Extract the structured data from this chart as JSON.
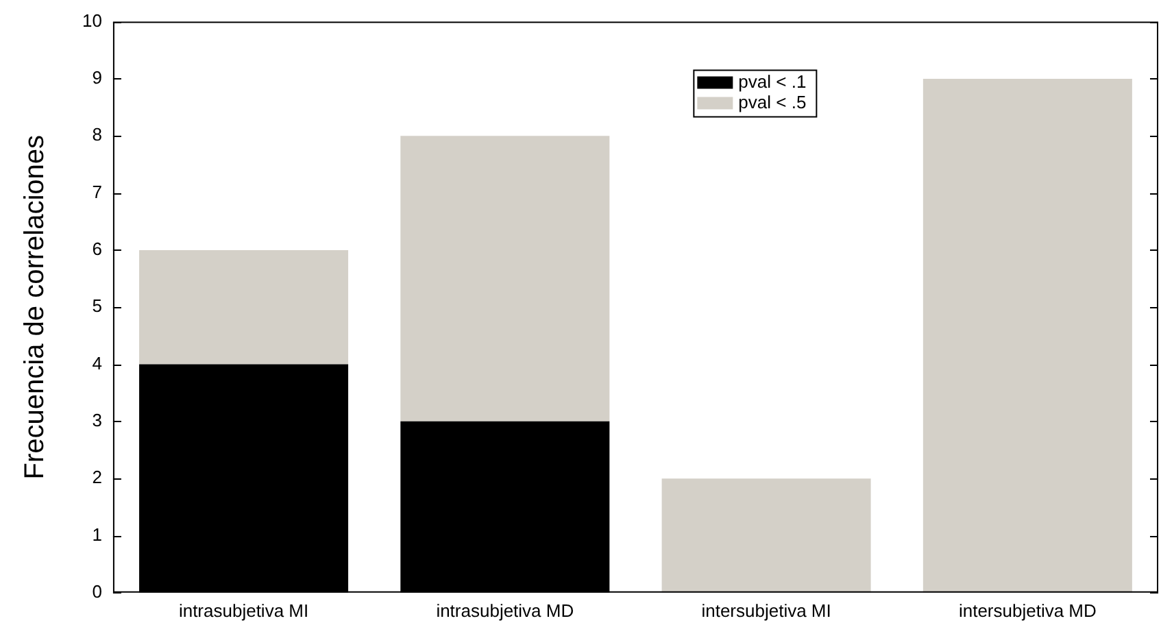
{
  "chart_data": {
    "type": "bar",
    "ylabel": "Frecuencia de correlaciones",
    "categories": [
      "intrasubjetiva MI",
      "intrasubjetiva MD",
      "intersubjetiva MI",
      "intersubjetiva MD"
    ],
    "stacked": true,
    "series": [
      {
        "name": "pval < .1",
        "color": "#000000",
        "values": [
          4,
          3,
          0,
          0
        ]
      },
      {
        "name": "pval < .5",
        "color": "#d4d0c8",
        "values": [
          2,
          5,
          2,
          9
        ]
      }
    ],
    "ylim": [
      0,
      10
    ],
    "yticks": [
      0,
      1,
      2,
      3,
      4,
      5,
      6,
      7,
      8,
      9,
      10
    ],
    "grid": false,
    "legend": "top right"
  }
}
